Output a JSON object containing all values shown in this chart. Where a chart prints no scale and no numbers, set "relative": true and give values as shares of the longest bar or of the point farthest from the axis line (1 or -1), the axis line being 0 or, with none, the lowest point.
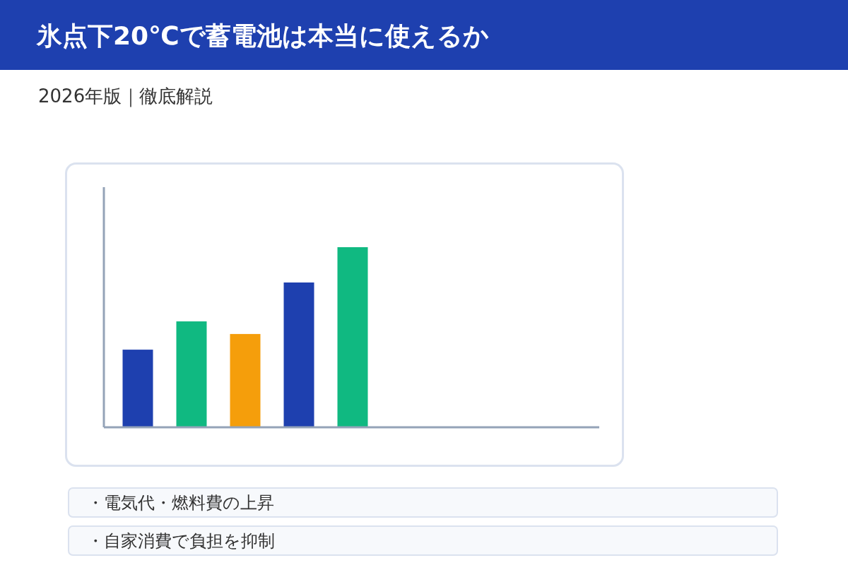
{
  "chart_data": {
    "type": "bar",
    "title": "氷点下20℃で蓄電池は本当に使えるか",
    "subtitle": "2026年版｜徹底解説",
    "categories": [
      null,
      null,
      null,
      null,
      null
    ],
    "values": [
      0.431,
      0.588,
      0.518,
      0.804,
      1
    ],
    "colors": [
      "#1e40af",
      "#10b981",
      "#f59e0b",
      "#1e40af",
      "#10b981"
    ],
    "relative": true,
    "annotations": [
      "・電気代・燃料費の上昇",
      "・自家消費で負担を抑制"
    ]
  }
}
